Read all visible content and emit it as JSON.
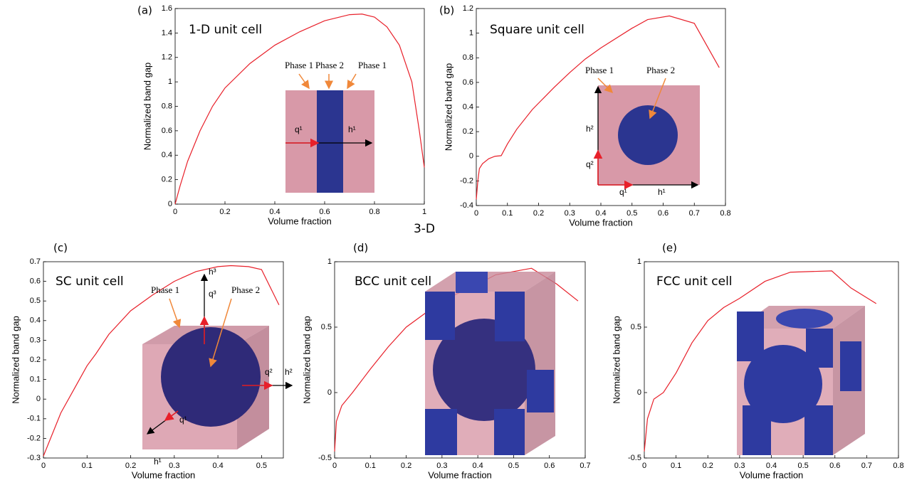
{
  "section_label": "3-D",
  "chart_data": [
    {
      "type": "line",
      "panel_label": "(a)",
      "title": "1-D unit cell",
      "xlabel": "Volume fraction",
      "ylabel": "Normalized band gap",
      "x": [
        0,
        0.02,
        0.05,
        0.1,
        0.15,
        0.2,
        0.3,
        0.4,
        0.5,
        0.6,
        0.7,
        0.75,
        0.8,
        0.85,
        0.9,
        0.95,
        0.98,
        1
      ],
      "values": [
        0,
        0.15,
        0.35,
        0.6,
        0.8,
        0.95,
        1.15,
        1.3,
        1.41,
        1.5,
        1.55,
        1.555,
        1.53,
        1.45,
        1.3,
        1.0,
        0.6,
        0.3
      ],
      "color": "#e8202a",
      "xlim": [
        0,
        1
      ],
      "ylim": [
        0,
        1.6
      ],
      "xticks": [
        0,
        0.2,
        0.4,
        0.6,
        0.8,
        1
      ],
      "yticks": [
        0,
        0.2,
        0.4,
        0.6,
        0.8,
        1,
        1.2,
        1.4,
        1.6
      ],
      "inset_labels": [
        "Phase 1",
        "Phase 2",
        "Phase 1",
        "q¹",
        "h¹"
      ]
    },
    {
      "type": "line",
      "panel_label": "(b)",
      "title": "Square unit cell",
      "xlabel": "Volume fraction",
      "ylabel": "Normalized band gap",
      "x": [
        0,
        0.005,
        0.01,
        0.02,
        0.04,
        0.06,
        0.08,
        0.1,
        0.13,
        0.18,
        0.25,
        0.3,
        0.35,
        0.4,
        0.5,
        0.55,
        0.62,
        0.7,
        0.78
      ],
      "values": [
        -0.35,
        -0.2,
        -0.1,
        -0.06,
        -0.02,
        0,
        0.005,
        0.1,
        0.22,
        0.38,
        0.56,
        0.68,
        0.79,
        0.88,
        1.04,
        1.11,
        1.14,
        1.08,
        0.72
      ],
      "color": "#e8202a",
      "xlim": [
        0,
        0.8
      ],
      "ylim": [
        -0.4,
        1.2
      ],
      "xticks": [
        0,
        0.1,
        0.2,
        0.3,
        0.4,
        0.5,
        0.6,
        0.7,
        0.8
      ],
      "yticks": [
        -0.4,
        -0.2,
        0,
        0.2,
        0.4,
        0.6,
        0.8,
        1,
        1.2
      ],
      "inset_labels": [
        "Phase 1",
        "Phase 2",
        "h²",
        "q²",
        "q¹",
        "h¹"
      ]
    },
    {
      "type": "line",
      "panel_label": "(c)",
      "title": "SC unit cell",
      "xlabel": "Volume fraction",
      "ylabel": "Normalized band gap",
      "x": [
        0,
        0.02,
        0.04,
        0.07,
        0.1,
        0.12,
        0.15,
        0.2,
        0.25,
        0.3,
        0.35,
        0.4,
        0.43,
        0.47,
        0.5,
        0.54
      ],
      "values": [
        -0.29,
        -0.18,
        -0.07,
        0.05,
        0.17,
        0.23,
        0.33,
        0.45,
        0.53,
        0.6,
        0.65,
        0.675,
        0.68,
        0.675,
        0.66,
        0.48
      ],
      "color": "#e8202a",
      "xlim": [
        0,
        0.55
      ],
      "ylim": [
        -0.3,
        0.7
      ],
      "xticks": [
        0,
        0.1,
        0.2,
        0.3,
        0.4,
        0.5
      ],
      "yticks": [
        -0.3,
        -0.2,
        -0.1,
        0,
        0.1,
        0.2,
        0.3,
        0.4,
        0.5,
        0.6,
        0.7
      ],
      "inset_labels": [
        "Phase 1",
        "Phase 2",
        "h³",
        "q³",
        "q²",
        "h²",
        "q¹",
        "h¹"
      ]
    },
    {
      "type": "line",
      "panel_label": "(d)",
      "title": "BCC unit cell",
      "xlabel": "Volume fraction",
      "ylabel": "Normalized band gap",
      "x": [
        0,
        0.005,
        0.02,
        0.05,
        0.1,
        0.15,
        0.2,
        0.3,
        0.4,
        0.45,
        0.55,
        0.62,
        0.68
      ],
      "values": [
        -0.45,
        -0.22,
        -0.1,
        0,
        0.18,
        0.35,
        0.5,
        0.7,
        0.83,
        0.9,
        0.95,
        0.83,
        0.7
      ],
      "color": "#e8202a",
      "xlim": [
        0,
        0.7
      ],
      "ylim": [
        -0.5,
        1
      ],
      "xticks": [
        0,
        0.1,
        0.2,
        0.3,
        0.4,
        0.5,
        0.6,
        0.7
      ],
      "yticks": [
        -0.5,
        0,
        0.5,
        1
      ]
    },
    {
      "type": "line",
      "panel_label": "(e)",
      "title": "FCC unit cell",
      "xlabel": "Volume fraction",
      "ylabel": "Normalized band gap",
      "x": [
        0,
        0.01,
        0.03,
        0.06,
        0.1,
        0.15,
        0.2,
        0.25,
        0.3,
        0.38,
        0.46,
        0.59,
        0.65,
        0.73
      ],
      "values": [
        -0.45,
        -0.2,
        -0.05,
        0,
        0.15,
        0.38,
        0.55,
        0.65,
        0.72,
        0.85,
        0.92,
        0.93,
        0.8,
        0.68
      ],
      "color": "#e8202a",
      "xlim": [
        0,
        0.8
      ],
      "ylim": [
        -0.5,
        1
      ],
      "xticks": [
        0,
        0.1,
        0.2,
        0.3,
        0.4,
        0.5,
        0.6,
        0.7,
        0.8
      ],
      "yticks": [
        -0.5,
        0,
        0.5,
        1
      ]
    }
  ]
}
